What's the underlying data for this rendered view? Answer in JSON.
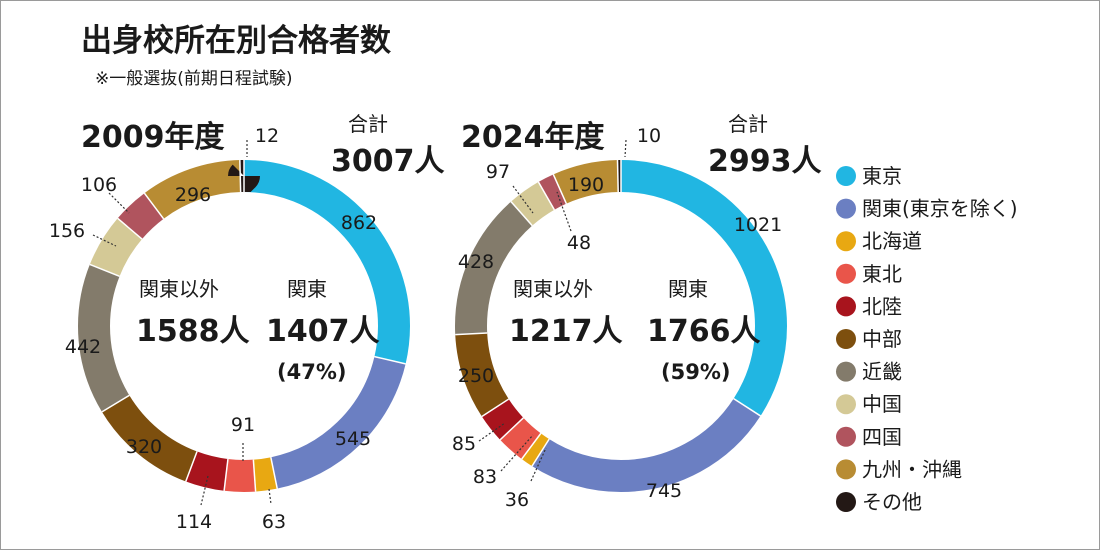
{
  "title": "出身校所在別合格者数",
  "subtitle": "※一般選抜(前期日程試験)",
  "chart_data": [
    {
      "type": "pie",
      "year_label": "2009年度",
      "total_label": "合計",
      "total_value": "3007人",
      "kanto_label": "関東",
      "kanto_value": "1407人",
      "kanto_pct": "(47%)",
      "other_label": "関東以外",
      "other_value": "1588人",
      "categories": [
        "東京",
        "関東(東京を除く)",
        "北海道",
        "東北",
        "北陸",
        "中部",
        "近畿",
        "中国",
        "四国",
        "九州・沖縄",
        "その他"
      ],
      "values": [
        862,
        545,
        63,
        91,
        114,
        320,
        442,
        156,
        106,
        296,
        12
      ]
    },
    {
      "type": "pie",
      "year_label": "2024年度",
      "total_label": "合計",
      "total_value": "2993人",
      "kanto_label": "関東",
      "kanto_value": "1766人",
      "kanto_pct": "(59%)",
      "other_label": "関東以外",
      "other_value": "1217人",
      "categories": [
        "東京",
        "関東(東京を除く)",
        "北海道",
        "東北",
        "北陸",
        "中部",
        "近畿",
        "中国",
        "四国",
        "九州・沖縄",
        "その他"
      ],
      "values": [
        1021,
        745,
        36,
        83,
        85,
        250,
        428,
        97,
        48,
        190,
        10
      ]
    }
  ],
  "legend": [
    {
      "label": "東京",
      "color": "#21b6e2"
    },
    {
      "label": "関東(東京を除く)",
      "color": "#6b7fc2"
    },
    {
      "label": "北海道",
      "color": "#e8a812"
    },
    {
      "label": "東北",
      "color": "#e9554a"
    },
    {
      "label": "北陸",
      "color": "#a8141d"
    },
    {
      "label": "中部",
      "color": "#7d4f0e"
    },
    {
      "label": "近畿",
      "color": "#837b6b"
    },
    {
      "label": "中国",
      "color": "#d4c996"
    },
    {
      "label": "四国",
      "color": "#b0545e"
    },
    {
      "label": "九州・沖縄",
      "color": "#b88c33"
    },
    {
      "label": "その他",
      "color": "#231815"
    }
  ]
}
